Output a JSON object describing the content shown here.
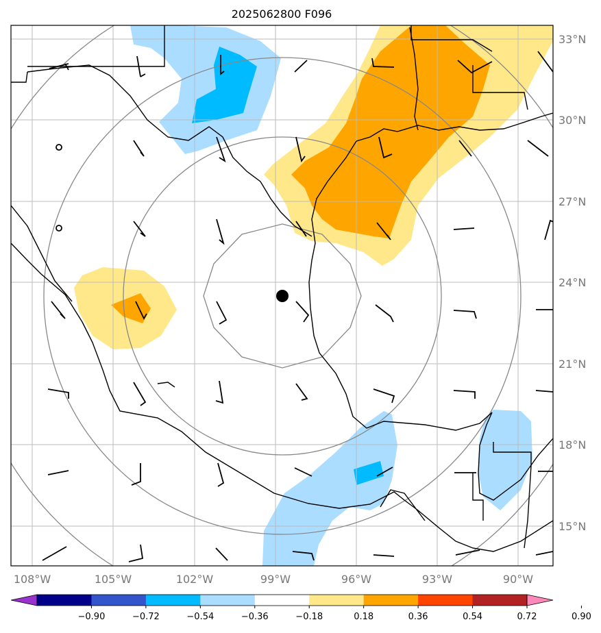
{
  "title": "2025062800 F096",
  "map": {
    "projection": "lat-lon",
    "lon_range": [
      -108.8,
      -89.2
    ],
    "lat_range": [
      13.5,
      33.5
    ],
    "center_marker": {
      "lon": -98.6,
      "lat": 23.5
    },
    "range_rings_deg": [
      3,
      6,
      9,
      12
    ],
    "grid_lines": true
  },
  "lon_ticks": [
    {
      "value": -108,
      "label": "108°W"
    },
    {
      "value": -105,
      "label": "105°W"
    },
    {
      "value": -102,
      "label": "102°W"
    },
    {
      "value": -99,
      "label": "99°W"
    },
    {
      "value": -96,
      "label": "96°W"
    },
    {
      "value": -93,
      "label": "93°W"
    },
    {
      "value": -90,
      "label": "90°W"
    }
  ],
  "lat_ticks": [
    {
      "value": 33,
      "label": "33°N"
    },
    {
      "value": 30,
      "label": "30°N"
    },
    {
      "value": 27,
      "label": "27°N"
    },
    {
      "value": 24,
      "label": "24°N"
    },
    {
      "value": 21,
      "label": "21°N"
    },
    {
      "value": 18,
      "label": "18°N"
    },
    {
      "value": 15,
      "label": "15°N"
    }
  ],
  "colorbar": {
    "colors": [
      "#9933cc",
      "#000088",
      "#3355cc",
      "#00bbff",
      "#aaddff",
      "#ffffff",
      "#ffe88a",
      "#ffa500",
      "#ff4400",
      "#b22222",
      "#ff88bb"
    ],
    "labels": [
      "−0.90",
      "−0.72",
      "−0.54",
      "−0.36",
      "−0.18",
      "0.18",
      "0.36",
      "0.54",
      "0.72",
      "0.90"
    ]
  },
  "colors": {
    "light_blue": "#aaddff",
    "medium_blue": "#00bbff",
    "light_yellow": "#ffe88a",
    "orange": "#ffa500",
    "grid": "#bbbbbb",
    "rings": "#888888"
  }
}
